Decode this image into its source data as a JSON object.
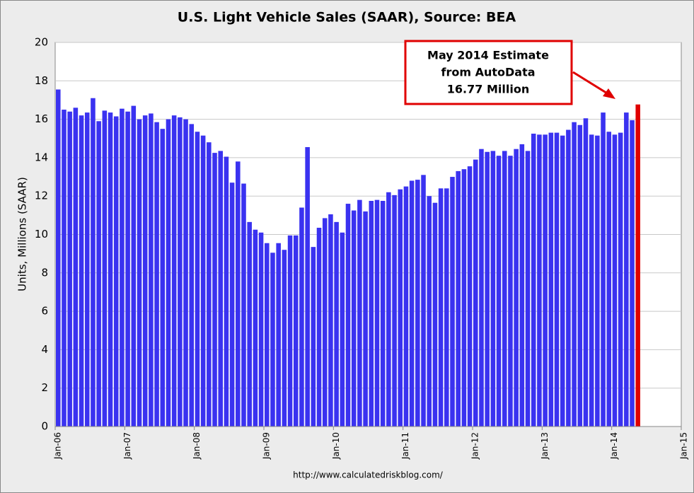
{
  "chart_data": {
    "type": "bar",
    "title": "U.S. Light Vehicle Sales (SAAR), Source: BEA",
    "y_label": "Units, Millions (SAAR)",
    "source": "http://www.calculatedriskblog.com/",
    "annotation": [
      "May 2014 Estimate",
      "from AutoData",
      "16.77 Million"
    ],
    "categories": [
      "Jan-06",
      null,
      null,
      null,
      null,
      null,
      null,
      null,
      null,
      null,
      null,
      null,
      "Jan-07",
      null,
      null,
      null,
      null,
      null,
      null,
      null,
      null,
      null,
      null,
      null,
      "Jan-08",
      null,
      null,
      null,
      null,
      null,
      null,
      null,
      null,
      null,
      null,
      null,
      "Jan-09",
      null,
      null,
      null,
      null,
      null,
      null,
      null,
      null,
      null,
      null,
      null,
      "Jan-10",
      null,
      null,
      null,
      null,
      null,
      null,
      null,
      null,
      null,
      null,
      null,
      "Jan-11",
      null,
      null,
      null,
      null,
      null,
      null,
      null,
      null,
      null,
      null,
      null,
      "Jan-12",
      null,
      null,
      null,
      null,
      null,
      null,
      null,
      null,
      null,
      null,
      null,
      "Jan-13",
      null,
      null,
      null,
      null,
      null,
      null,
      null,
      null,
      null,
      null,
      null,
      "Jan-14",
      null,
      null,
      null,
      null,
      null,
      null,
      null,
      null,
      null,
      null,
      null,
      "Jan-15"
    ],
    "series": [
      {
        "color": "#3a32f0",
        "values": [
          17.55,
          16.5,
          16.4,
          16.6,
          16.2,
          16.35,
          17.1,
          15.9,
          16.45,
          16.35,
          16.15,
          16.55,
          16.4,
          16.7,
          16.0,
          16.2,
          16.3,
          15.85,
          15.5,
          16.0,
          16.2,
          16.1,
          16.0,
          15.75,
          15.35,
          15.15,
          14.8,
          14.25,
          14.35,
          14.05,
          12.7,
          13.8,
          12.65,
          10.65,
          10.25,
          10.1,
          9.55,
          9.05,
          9.55,
          9.2,
          9.95,
          9.95,
          11.4,
          14.55,
          9.35,
          10.35,
          10.85,
          11.05,
          10.65,
          10.1,
          11.6,
          11.25,
          11.8,
          11.2,
          11.75,
          11.8,
          11.75,
          12.2,
          12.05,
          12.35,
          12.5,
          12.8,
          12.85,
          13.1,
          12.0,
          11.65,
          12.4,
          12.4,
          13.0,
          13.3,
          13.4,
          13.55,
          13.9,
          14.45,
          14.3,
          14.35,
          14.1,
          14.35,
          14.1,
          14.45,
          14.7,
          14.35,
          15.25,
          15.2,
          15.2,
          15.3,
          15.3,
          15.15,
          15.45,
          15.85,
          15.7,
          16.05,
          15.2,
          15.15,
          16.35,
          15.35,
          15.2,
          15.3,
          16.35,
          15.95,
          null,
          null,
          null,
          null,
          null,
          null,
          null,
          null,
          null
        ]
      },
      {
        "color": "#e00000",
        "values": [
          null,
          null,
          null,
          null,
          null,
          null,
          null,
          null,
          null,
          null,
          null,
          null,
          null,
          null,
          null,
          null,
          null,
          null,
          null,
          null,
          null,
          null,
          null,
          null,
          null,
          null,
          null,
          null,
          null,
          null,
          null,
          null,
          null,
          null,
          null,
          null,
          null,
          null,
          null,
          null,
          null,
          null,
          null,
          null,
          null,
          null,
          null,
          null,
          null,
          null,
          null,
          null,
          null,
          null,
          null,
          null,
          null,
          null,
          null,
          null,
          null,
          null,
          null,
          null,
          null,
          null,
          null,
          null,
          null,
          null,
          null,
          null,
          null,
          null,
          null,
          null,
          null,
          null,
          null,
          null,
          null,
          null,
          null,
          null,
          null,
          null,
          null,
          null,
          null,
          null,
          null,
          null,
          null,
          null,
          null,
          null,
          null,
          null,
          null,
          null,
          16.77,
          null,
          null,
          null,
          null,
          null,
          null,
          null,
          null
        ]
      }
    ],
    "ylim": [
      0,
      20
    ],
    "yticks": [
      0,
      2,
      4,
      6,
      8,
      10,
      12,
      14,
      16,
      18,
      20
    ],
    "grid": true
  }
}
